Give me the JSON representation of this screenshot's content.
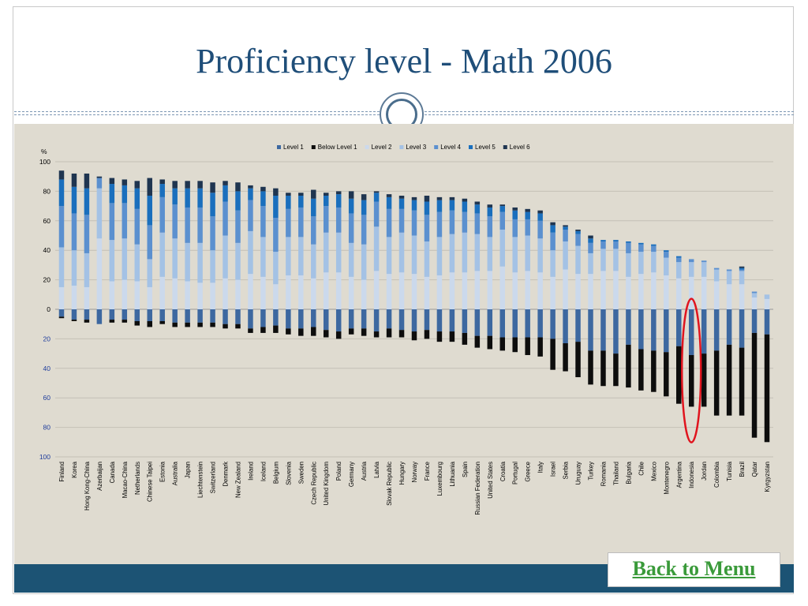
{
  "slide": {
    "title": "Proficiency level - Math 2006",
    "back_link": "Back to Menu"
  },
  "colors": {
    "Below Level 1": "#0d0d0d",
    "Level 1": "#3d68a0",
    "Level 2": "#cbd9ec",
    "Level 3": "#a4c2e5",
    "Level 4": "#5b90cf",
    "Level 5": "#1a6fbd",
    "Level 6": "#1f3550",
    "highlight": "#e0141e"
  },
  "chart_data": {
    "type": "bar",
    "stacked": true,
    "y_unit_label": "%",
    "ylim": [
      -100,
      100
    ],
    "y_ticks": [
      {
        "value": 100,
        "label": "100"
      },
      {
        "value": 80,
        "label": "80"
      },
      {
        "value": 60,
        "label": "60"
      },
      {
        "value": 40,
        "label": "40"
      },
      {
        "value": 20,
        "label": "20"
      },
      {
        "value": 0,
        "label": "0"
      },
      {
        "value": -20,
        "label": "20"
      },
      {
        "value": -40,
        "label": "40"
      },
      {
        "value": -60,
        "label": "60"
      },
      {
        "value": -80,
        "label": "80"
      },
      {
        "value": -100,
        "label": "100"
      }
    ],
    "grid": true,
    "legend_position": "top",
    "legend": [
      "Level 1",
      "Below Level 1",
      "Level 2",
      "Level 3",
      "Level 4",
      "Level 5",
      "Level 6"
    ],
    "highlighted_category": "Indonesia",
    "categories": [
      "Finland",
      "Korea",
      "Hong Kong-China",
      "Azerbaijan",
      "Canada",
      "Macao-China",
      "Netherlands",
      "Chinese Taipei",
      "Estonia",
      "Australia",
      "Japan",
      "Liechtenstein",
      "Switzerland",
      "Denmark",
      "New Zealand",
      "Ireland",
      "Iceland",
      "Belgium",
      "Slovenia",
      "Sweden",
      "Czech Republic",
      "United Kingdom",
      "Poland",
      "Germany",
      "Austria",
      "Latvia",
      "Slovak Republic",
      "Hungary",
      "Norway",
      "France",
      "Luxembourg",
      "Lithuania",
      "Spain",
      "Russian Federation",
      "United States",
      "Croatia",
      "Portugal",
      "Greece",
      "Italy",
      "Israel",
      "Serbia",
      "Uruguay",
      "Turkey",
      "Romania",
      "Thailand",
      "Bulgaria",
      "Chile",
      "Mexico",
      "Montenegro",
      "Argentina",
      "Indonesia",
      "Jordan",
      "Colombia",
      "Tunisia",
      "Brazil",
      "Qatar",
      "Kyrgyzstan"
    ],
    "series": [
      {
        "name": "Below Level 1",
        "direction": "below",
        "values": [
          1,
          1,
          2,
          0,
          2,
          2,
          3,
          4,
          2,
          3,
          3,
          3,
          3,
          3,
          3,
          3,
          4,
          5,
          4,
          5,
          6,
          5,
          5,
          4,
          5,
          4,
          6,
          5,
          6,
          6,
          7,
          7,
          8,
          8,
          9,
          9,
          10,
          12,
          13,
          21,
          19,
          24,
          23,
          24,
          22,
          29,
          28,
          28,
          30,
          39,
          35,
          36,
          44,
          48,
          46,
          71,
          73
        ]
      },
      {
        "name": "Level 1",
        "direction": "below",
        "values": [
          5,
          7,
          7,
          10,
          7,
          7,
          8,
          8,
          8,
          9,
          9,
          9,
          9,
          10,
          10,
          13,
          12,
          11,
          13,
          13,
          12,
          14,
          15,
          13,
          13,
          15,
          13,
          14,
          15,
          14,
          15,
          15,
          16,
          18,
          18,
          19,
          19,
          19,
          19,
          20,
          23,
          22,
          28,
          28,
          30,
          24,
          27,
          28,
          29,
          25,
          31,
          30,
          28,
          24,
          26,
          16,
          17
        ]
      },
      {
        "name": "Level 2",
        "direction": "above",
        "values": [
          15,
          16,
          15,
          48,
          19,
          20,
          19,
          15,
          22,
          21,
          19,
          18,
          18,
          21,
          20,
          24,
          22,
          17,
          23,
          23,
          21,
          25,
          25,
          22,
          20,
          26,
          24,
          25,
          24,
          22,
          23,
          25,
          25,
          26,
          26,
          29,
          25,
          26,
          25,
          22,
          27,
          24,
          24,
          26,
          26,
          22,
          24,
          25,
          23,
          21,
          22,
          22,
          19,
          17,
          17,
          8,
          7
        ]
      },
      {
        "name": "Level 3",
        "direction": "above",
        "values": [
          27,
          24,
          23,
          34,
          28,
          28,
          25,
          19,
          30,
          27,
          26,
          27,
          22,
          29,
          25,
          29,
          27,
          22,
          26,
          26,
          23,
          27,
          27,
          23,
          24,
          30,
          25,
          27,
          26,
          24,
          26,
          26,
          27,
          25,
          23,
          25,
          24,
          24,
          23,
          18,
          19,
          19,
          14,
          15,
          15,
          16,
          15,
          14,
          12,
          11,
          10,
          10,
          8,
          9,
          9,
          3,
          3
        ]
      },
      {
        "name": "Level 4",
        "direction": "above",
        "values": [
          28,
          25,
          26,
          7,
          25,
          24,
          24,
          23,
          24,
          23,
          24,
          24,
          23,
          23,
          22,
          21,
          21,
          23,
          19,
          20,
          19,
          18,
          17,
          20,
          20,
          17,
          19,
          16,
          17,
          18,
          17,
          16,
          14,
          14,
          14,
          12,
          12,
          11,
          12,
          12,
          8,
          8,
          7,
          5,
          5,
          7,
          5,
          4,
          4,
          3,
          2,
          1,
          1,
          1,
          1,
          1,
          0
        ]
      },
      {
        "name": "Level 5",
        "direction": "above",
        "values": [
          18,
          18,
          18,
          0,
          13,
          12,
          14,
          20,
          9,
          11,
          13,
          13,
          16,
          11,
          13,
          8,
          10,
          15,
          9,
          8,
          12,
          7,
          9,
          10,
          10,
          6,
          8,
          7,
          7,
          9,
          8,
          7,
          7,
          6,
          6,
          4,
          6,
          5,
          5,
          5,
          2,
          2,
          3,
          1,
          1,
          1,
          1,
          1,
          1,
          1,
          0,
          0,
          0,
          0,
          1,
          0,
          0
        ]
      },
      {
        "name": "Level 6",
        "direction": "above",
        "values": [
          6,
          9,
          10,
          1,
          4,
          4,
          5,
          12,
          3,
          5,
          5,
          5,
          7,
          3,
          6,
          2,
          3,
          5,
          2,
          2,
          6,
          2,
          2,
          5,
          4,
          1,
          2,
          2,
          2,
          4,
          2,
          2,
          2,
          2,
          2,
          1,
          2,
          2,
          2,
          2,
          1,
          1,
          2,
          0,
          0,
          0,
          0,
          0,
          0,
          0,
          0,
          0,
          0,
          0,
          1,
          0,
          0
        ]
      }
    ]
  }
}
